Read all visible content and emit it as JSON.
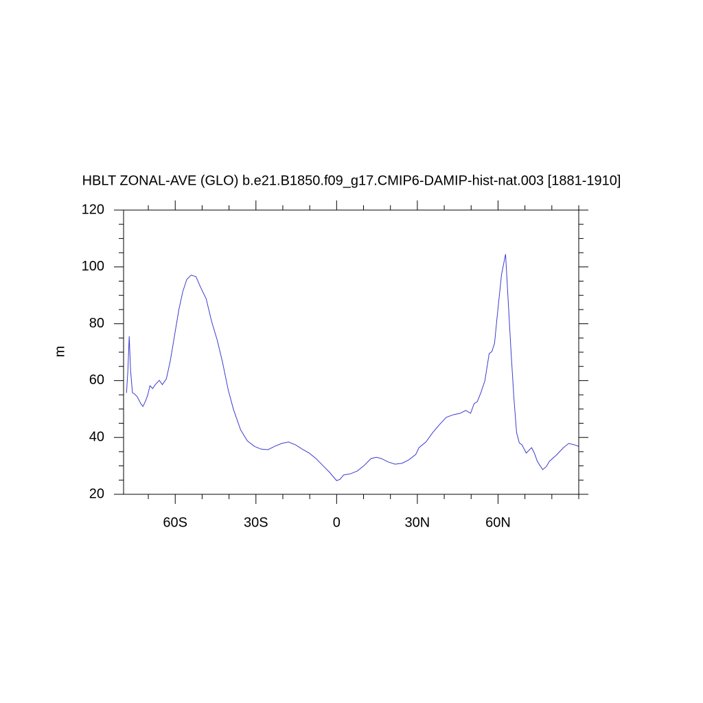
{
  "chart_data": {
    "type": "line",
    "title": "HBLT ZONAL-AVE (GLO) b.e21.B1850.f09_g17.CMIP6-DAMIP-hist-nat.003 [1881-1910]",
    "y_label": "m",
    "xlim": [
      -79.2,
      90
    ],
    "ylim": [
      20,
      120
    ],
    "xticks": [
      {
        "value": -60,
        "label": "60S"
      },
      {
        "value": -30,
        "label": "30S"
      },
      0,
      {
        "value": 30,
        "label": "30N"
      },
      {
        "value": 60,
        "label": "60N"
      }
    ],
    "xminorticks": [
      -70,
      -50,
      -40,
      -20,
      -10,
      10,
      20,
      40,
      50,
      70,
      80,
      90
    ],
    "yticks": [
      20,
      40,
      60,
      80,
      100,
      120
    ],
    "yminorticks": [
      25,
      30,
      35,
      45,
      50,
      55,
      65,
      70,
      75,
      85,
      90,
      95,
      105,
      110,
      115
    ],
    "grid": false,
    "series": [
      {
        "color": "#3a3ad0",
        "x": [
          -78.1,
          -77.6,
          -77.1,
          -76.6,
          -75.9,
          -75.1,
          -74.1,
          -72.8,
          -72.0,
          -71.0,
          -70.2,
          -69.4,
          -68.4,
          -67.4,
          -65.9,
          -64.8,
          -63.3,
          -61.8,
          -60.3,
          -58.7,
          -57.2,
          -55.7,
          -54.1,
          -52.3,
          -50.6,
          -48.5,
          -46.5,
          -44.4,
          -42.4,
          -40.3,
          -38.3,
          -35.7,
          -33.2,
          -30.6,
          -28.1,
          -25.5,
          -23.0,
          -20.4,
          -17.9,
          -15.3,
          -12.8,
          -10.2,
          -7.7,
          -5.1,
          -2.6,
          0,
          1.3,
          2.6,
          5.1,
          7.7,
          10.2,
          12.8,
          14.8,
          16.6,
          19.1,
          21.7,
          24.3,
          26.8,
          29.4,
          30.6,
          33.2,
          35.7,
          38.3,
          40.8,
          43.4,
          45.9,
          48.0,
          49.8,
          51.1,
          52.3,
          53.6,
          55.1,
          56.7,
          57.7,
          58.7,
          59.7,
          61.3,
          62.8,
          63.8,
          64.8,
          65.9,
          66.9,
          67.9,
          68.9,
          70.5,
          71.5,
          72.5,
          73.5,
          74.6,
          75.6,
          76.6,
          77.9,
          79.1,
          81.7,
          84.3,
          86.3,
          88.4,
          89.9
        ],
        "values": [
          55.7,
          63.5,
          75.6,
          63.5,
          55.7,
          55.3,
          54.3,
          51.9,
          50.9,
          52.9,
          55.0,
          58.2,
          57.2,
          58.6,
          60.1,
          58.6,
          60.6,
          67.1,
          75.6,
          84.7,
          91.3,
          95.6,
          97.1,
          96.6,
          92.9,
          88.8,
          80.9,
          74.3,
          66.4,
          56.7,
          49.7,
          42.7,
          38.8,
          36.9,
          35.9,
          35.7,
          36.9,
          37.9,
          38.4,
          37.4,
          35.9,
          34.5,
          32.6,
          30.1,
          27.7,
          24.8,
          25.3,
          26.8,
          27.2,
          28.2,
          30.1,
          32.6,
          33.0,
          32.6,
          31.4,
          30.6,
          30.9,
          32.1,
          34.0,
          36.4,
          38.4,
          41.7,
          44.6,
          47.1,
          48.0,
          48.5,
          49.5,
          48.5,
          51.9,
          52.6,
          55.7,
          59.9,
          69.5,
          70.2,
          73.1,
          82.8,
          97.3,
          104.5,
          87.6,
          70.7,
          53.8,
          41.7,
          38.1,
          37.4,
          34.5,
          35.5,
          36.4,
          34.5,
          31.6,
          30.1,
          28.7,
          29.7,
          31.6,
          33.8,
          36.4,
          37.9,
          37.4,
          36.9
        ]
      }
    ]
  }
}
